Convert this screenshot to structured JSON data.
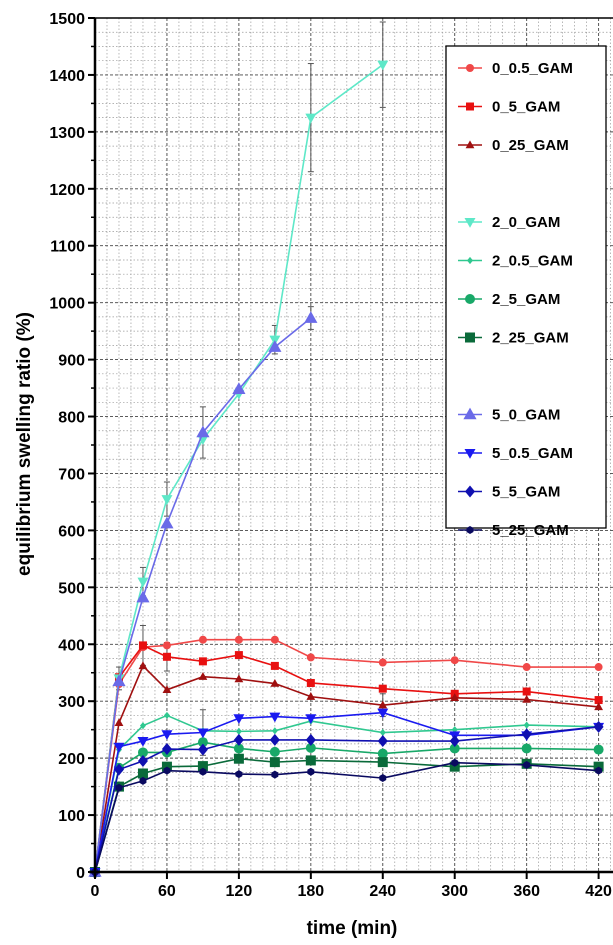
{
  "chart_data": {
    "type": "line",
    "title": "",
    "xlabel": "time (min)",
    "ylabel": "equilibrium swelling ratio (%)",
    "xlim": [
      0,
      432
    ],
    "ylim": [
      0,
      1500
    ],
    "xticks": [
      0,
      60,
      120,
      180,
      240,
      300,
      360,
      420
    ],
    "yticks": [
      0,
      100,
      200,
      300,
      400,
      500,
      600,
      700,
      800,
      900,
      1000,
      1100,
      1200,
      1300,
      1400,
      1500
    ],
    "grid": "major and minor dotted",
    "legend_position": "top-right",
    "series": [
      {
        "name": "0_0.5_GAM",
        "color": "#f04848",
        "marker": "circle",
        "size": 4,
        "x": [
          0,
          20,
          40,
          60,
          90,
          120,
          150,
          180,
          240,
          300,
          360,
          420
        ],
        "y": [
          0,
          330,
          395,
          398,
          408,
          408,
          408,
          377,
          368,
          372,
          360,
          360
        ]
      },
      {
        "name": "0_5_GAM",
        "color": "#e81010",
        "marker": "square",
        "size": 4,
        "x": [
          0,
          20,
          40,
          60,
          90,
          120,
          150,
          180,
          240,
          300,
          360,
          420
        ],
        "y": [
          0,
          342,
          398,
          378,
          370,
          381,
          362,
          332,
          322,
          313,
          317,
          302
        ]
      },
      {
        "name": "0_25_GAM",
        "color": "#a01010",
        "marker": "triangle-up",
        "size": 4,
        "x": [
          0,
          20,
          40,
          60,
          90,
          120,
          150,
          180,
          240,
          300,
          360,
          420
        ],
        "y": [
          0,
          262,
          362,
          320,
          343,
          339,
          331,
          308,
          293,
          306,
          303,
          290
        ]
      },
      {
        "name": "2_0_GAM",
        "color": "#5ee8c8",
        "marker": "triangle-down",
        "size": 5,
        "x": [
          0,
          20,
          40,
          60,
          90,
          120,
          150,
          180,
          240
        ],
        "y": [
          0,
          340,
          510,
          655,
          760,
          840,
          935,
          1325,
          1418
        ]
      },
      {
        "name": "2_0.5_GAM",
        "color": "#30c890",
        "marker": "diamond",
        "size": 3,
        "x": [
          0,
          20,
          40,
          60,
          90,
          120,
          150,
          180,
          240,
          300,
          360,
          420
        ],
        "y": [
          0,
          215,
          257,
          275,
          248,
          247,
          248,
          265,
          245,
          250,
          258,
          255
        ]
      },
      {
        "name": "2_5_GAM",
        "color": "#18a868",
        "marker": "circle",
        "size": 5,
        "x": [
          0,
          20,
          40,
          60,
          90,
          120,
          150,
          180,
          240,
          300,
          360,
          420
        ],
        "y": [
          0,
          183,
          210,
          210,
          228,
          217,
          211,
          218,
          208,
          217,
          217,
          215
        ]
      },
      {
        "name": "2_25_GAM",
        "color": "#0a6a3a",
        "marker": "square",
        "size": 5,
        "x": [
          0,
          20,
          40,
          60,
          90,
          120,
          150,
          180,
          240,
          300,
          360,
          420
        ],
        "y": [
          0,
          150,
          173,
          185,
          186,
          199,
          193,
          196,
          193,
          185,
          190,
          185
        ]
      },
      {
        "name": "5_0_GAM",
        "color": "#6a6ae8",
        "marker": "triangle-up",
        "size": 6,
        "x": [
          0,
          20,
          40,
          60,
          90,
          120,
          150,
          180
        ],
        "y": [
          0,
          335,
          482,
          612,
          772,
          848,
          922,
          973
        ]
      },
      {
        "name": "5_0.5_GAM",
        "color": "#1a1af0",
        "marker": "triangle-down",
        "size": 5,
        "x": [
          0,
          20,
          40,
          60,
          90,
          120,
          150,
          180,
          240,
          300,
          360,
          420
        ],
        "y": [
          0,
          220,
          230,
          242,
          245,
          270,
          273,
          270,
          280,
          240,
          240,
          255
        ]
      },
      {
        "name": "5_5_GAM",
        "color": "#1010b0",
        "marker": "diamond",
        "size": 5,
        "x": [
          0,
          20,
          40,
          60,
          90,
          120,
          150,
          180,
          240,
          300,
          360,
          420
        ],
        "y": [
          0,
          180,
          195,
          216,
          215,
          232,
          232,
          232,
          230,
          230,
          242,
          255
        ]
      },
      {
        "name": "5_25_GAM",
        "color": "#0a0a60",
        "marker": "hexagon",
        "size": 4,
        "x": [
          0,
          20,
          40,
          60,
          90,
          120,
          150,
          180,
          240,
          300,
          360,
          420
        ],
        "y": [
          0,
          148,
          160,
          178,
          176,
          172,
          171,
          176,
          165,
          192,
          188,
          178
        ]
      }
    ],
    "error_bars": [
      {
        "x": 40,
        "y": 510,
        "err": 25,
        "color": "#555555"
      },
      {
        "x": 60,
        "y": 655,
        "err": 30,
        "color": "#555555"
      },
      {
        "x": 90,
        "y": 772,
        "err": 45,
        "color": "#555555"
      },
      {
        "x": 150,
        "y": 935,
        "err": 25,
        "color": "#555555"
      },
      {
        "x": 180,
        "y": 973,
        "err": 20,
        "color": "#555555"
      },
      {
        "x": 180,
        "y": 1325,
        "err": 95,
        "color": "#555555"
      },
      {
        "x": 240,
        "y": 1418,
        "err": 75,
        "color": "#555555"
      },
      {
        "x": 40,
        "y": 398,
        "err": 35,
        "color": "#555555"
      },
      {
        "x": 60,
        "y": 378,
        "err": 25,
        "color": "#555555"
      },
      {
        "x": 90,
        "y": 245,
        "err": 40,
        "color": "#555555"
      },
      {
        "x": 240,
        "y": 293,
        "err": 20,
        "color": "#555555"
      },
      {
        "x": 20,
        "y": 340,
        "err": 20,
        "color": "#555555"
      }
    ]
  }
}
